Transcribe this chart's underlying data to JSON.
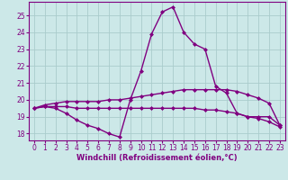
{
  "title": "",
  "xlabel": "Windchill (Refroidissement éolien,°C)",
  "bg_color": "#cce8e8",
  "grid_color": "#aacccc",
  "x_ticks": [
    0,
    1,
    2,
    3,
    4,
    5,
    6,
    7,
    8,
    9,
    10,
    11,
    12,
    13,
    14,
    15,
    16,
    17,
    18,
    19,
    20,
    21,
    22,
    23
  ],
  "y_ticks": [
    18,
    19,
    20,
    21,
    22,
    23,
    24,
    25
  ],
  "xlim": [
    -0.5,
    23.5
  ],
  "ylim": [
    17.6,
    25.8
  ],
  "series": [
    {
      "x": [
        0,
        1,
        2,
        3,
        4,
        5,
        6,
        7,
        8,
        9,
        10,
        11,
        12,
        13,
        14,
        15,
        16,
        17,
        18,
        19,
        20,
        21,
        22,
        23
      ],
      "y": [
        19.5,
        19.6,
        19.5,
        19.2,
        18.8,
        18.5,
        18.3,
        18.0,
        17.8,
        20.0,
        21.7,
        23.9,
        25.2,
        25.5,
        24.0,
        23.3,
        23.0,
        20.8,
        20.4,
        19.2,
        19.0,
        19.0,
        19.0,
        18.5
      ]
    },
    {
      "x": [
        0,
        1,
        2,
        3,
        4,
        5,
        6,
        7,
        8,
        9,
        10,
        11,
        12,
        13,
        14,
        15,
        16,
        17,
        18,
        19,
        20,
        21,
        22,
        23
      ],
      "y": [
        19.5,
        19.7,
        19.8,
        19.9,
        19.9,
        19.9,
        19.9,
        20.0,
        20.0,
        20.1,
        20.2,
        20.3,
        20.4,
        20.5,
        20.6,
        20.6,
        20.6,
        20.6,
        20.6,
        20.5,
        20.3,
        20.1,
        19.8,
        18.5
      ]
    },
    {
      "x": [
        0,
        1,
        2,
        3,
        4,
        5,
        6,
        7,
        8,
        9,
        10,
        11,
        12,
        13,
        14,
        15,
        16,
        17,
        18,
        19,
        20,
        21,
        22,
        23
      ],
      "y": [
        19.5,
        19.6,
        19.6,
        19.6,
        19.5,
        19.5,
        19.5,
        19.5,
        19.5,
        19.5,
        19.5,
        19.5,
        19.5,
        19.5,
        19.5,
        19.5,
        19.4,
        19.4,
        19.3,
        19.2,
        19.0,
        18.9,
        18.7,
        18.4
      ]
    }
  ],
  "line_color": "#800080",
  "marker": "D",
  "marker_size": 2.0,
  "lw": 1.0,
  "tick_label_fontsize": 5.5,
  "xlabel_fontsize": 6.0,
  "tick_color": "#800080",
  "axis_color": "#800080"
}
